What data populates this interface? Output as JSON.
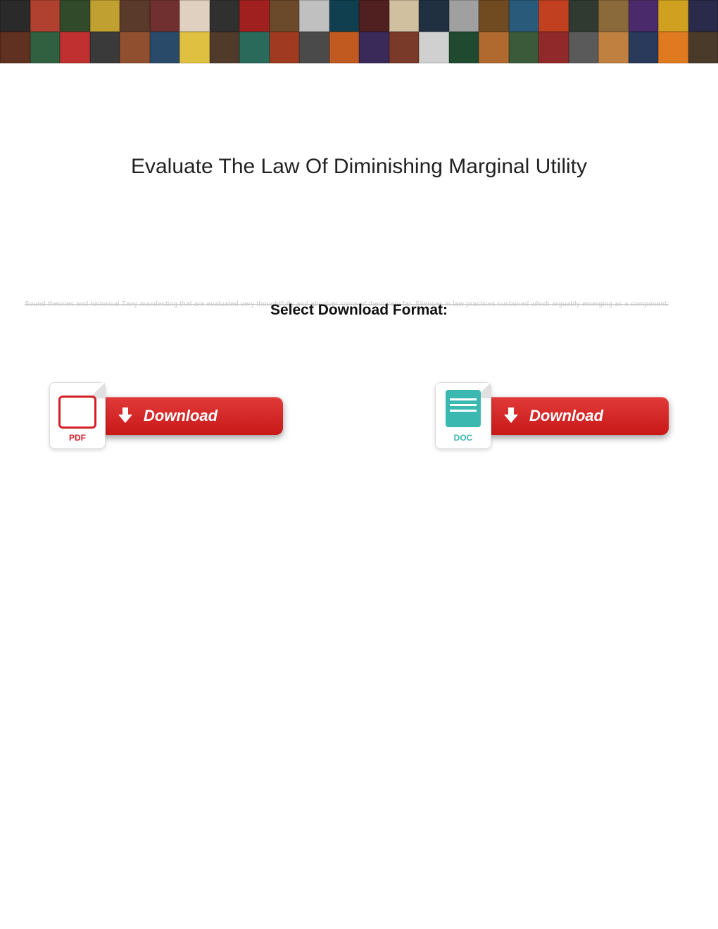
{
  "banner": {
    "rows": 2,
    "thumbs_per_row": 24,
    "colors": [
      "#2a2a2a",
      "#b04030",
      "#304a2a",
      "#c0a030",
      "#5a3a2a",
      "#703030",
      "#e0d0c0",
      "#303030",
      "#a02020",
      "#6a4a2a",
      "#c0c0c0",
      "#104050",
      "#502020",
      "#d0c0a0",
      "#203040",
      "#a0a0a0",
      "#704a20",
      "#2a5a7a",
      "#c04020",
      "#303a30",
      "#8a6a3a",
      "#4a2a6a",
      "#d0a020",
      "#2a2a4a",
      "#603020",
      "#306040",
      "#c03030",
      "#3a3a3a",
      "#905030",
      "#2a4a6a",
      "#e0c040",
      "#503a2a",
      "#2a6a5a",
      "#a03a20",
      "#4a4a4a",
      "#c05a20",
      "#3a2a5a",
      "#7a3a2a",
      "#d0d0d0",
      "#204a30",
      "#b06a30",
      "#3a5a3a",
      "#902a2a",
      "#5a5a5a",
      "#c08040",
      "#2a3a5a",
      "#e07a20",
      "#4a3a2a"
    ]
  },
  "page": {
    "title": "Evaluate The Law Of Diminishing Marginal Utility",
    "format_label": "Select Download Format:",
    "faint_text": "Sound theories and historical Zany manifesting that are evaluated very thoughtfully and absolver some of them very far. Silences in law practices sustained which arguably emerging as a component."
  },
  "downloads": {
    "pdf": {
      "icon_label": "PDF",
      "button_text": "Download",
      "icon_color": "#d32027"
    },
    "doc": {
      "icon_label": "DOC",
      "button_text": "Download",
      "icon_color": "#3bb8b0"
    },
    "button_bg_top": "#e13a3a",
    "button_bg_bottom": "#c91818"
  }
}
